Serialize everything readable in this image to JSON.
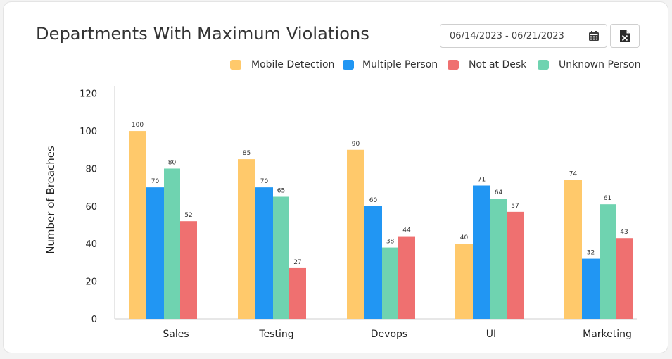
{
  "header": {
    "title": "Departments With Maximum Violations",
    "date_range": "06/14/2023 - 06/21/2023"
  },
  "icons": {
    "calendar": "calendar-icon",
    "export": "excel-file-icon"
  },
  "chart_data": {
    "type": "bar",
    "title": "Departments With Maximum Violations",
    "ylabel": "Number of Breaches",
    "xlabel": "",
    "categories": [
      "Sales",
      "Testing",
      "Devops",
      "UI",
      "Marketing"
    ],
    "series": [
      {
        "name": "Mobile Detection",
        "color": "#ffc96b",
        "values": [
          100,
          85,
          90,
          40,
          74
        ]
      },
      {
        "name": "Multiple Person",
        "color": "#2196f3",
        "values": [
          70,
          70,
          60,
          71,
          32
        ]
      },
      {
        "name": "Unknown Person",
        "color": "#6fd3b0",
        "values": [
          80,
          65,
          38,
          64,
          61
        ]
      },
      {
        "name": "Not at Desk",
        "color": "#ef7070",
        "values": [
          52,
          27,
          44,
          57,
          43
        ]
      }
    ],
    "legend_order": [
      "Mobile Detection",
      "Multiple Person",
      "Not at Desk",
      "Unknown Person"
    ],
    "yticks": [
      0,
      20,
      40,
      60,
      80,
      100,
      120
    ],
    "ylim": [
      0,
      130
    ],
    "legend_position": "top-right",
    "grid": false
  }
}
